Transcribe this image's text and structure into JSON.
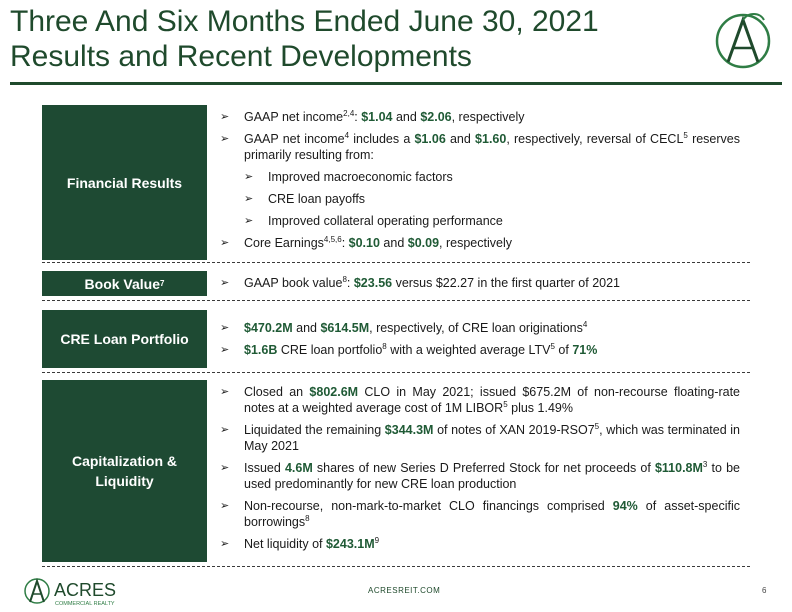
{
  "header": {
    "title_line1": "Three And Six Months Ended June 30, 2021",
    "title_line2": "Results and Recent Developments"
  },
  "sections": {
    "financial": {
      "label": "Financial Results",
      "b1": {
        "pre": "GAAP net income",
        "sup": "2,4",
        "mid": ": ",
        "v1": "$1.04",
        "and": " and ",
        "v2": "$2.06",
        "post": ", respectively"
      },
      "b2": {
        "pre": "GAAP net income",
        "sup": "4",
        "mid": " includes a ",
        "v1": "$1.06",
        "and": " and ",
        "v2": "$1.60",
        "post": ", respectively, reversal of CECL",
        "sup2": "5",
        "post2": " reserves primarily resulting from:"
      },
      "sub1": "Improved macroeconomic factors",
      "sub2": "CRE loan payoffs",
      "sub3": "Improved collateral operating performance",
      "b3": {
        "pre": "Core Earnings",
        "sup": "4,5,6",
        "mid": ": ",
        "v1": "$0.10",
        "and": " and ",
        "v2": "$0.09",
        "post": ", respectively"
      }
    },
    "book": {
      "label": "Book Value",
      "label_sup": "7",
      "b1": {
        "pre": "GAAP book value",
        "sup": "8",
        "mid": ": ",
        "v1": "$23.56",
        "post": " versus $22.27 in the first quarter of 2021"
      }
    },
    "cre": {
      "label": "CRE Loan Portfolio",
      "b1": {
        "v1": "$470.2M",
        "and": " and ",
        "v2": "$614.5M",
        "post": ", respectively, of CRE loan originations",
        "sup": "4"
      },
      "b2": {
        "v1": "$1.6B",
        "mid": " CRE loan portfolio",
        "sup": "8",
        "post": " with a weighted average LTV",
        "sup2": "5",
        "post2": " of ",
        "v2": "71%"
      }
    },
    "cap": {
      "label_line1": "Capitalization &",
      "label_line2": "Liquidity",
      "b1": {
        "pre": "Closed an ",
        "v1": "$802.6M",
        "post": " CLO in May 2021; issued $675.2M of non-recourse floating-rate notes at a weighted average cost of 1M LIBOR",
        "sup": "5",
        "post2": " plus 1.49%"
      },
      "b2": {
        "pre": "Liquidated the remaining ",
        "v1": "$344.3M",
        "post": " of notes of XAN 2019-RSO7",
        "sup": "5",
        "post2": ", which was terminated in May 2021"
      },
      "b3": {
        "pre": "Issued ",
        "v1": "4.6M",
        "mid": " shares of new Series D Preferred Stock for net proceeds of ",
        "v2": "$110.8M",
        "sup": "3",
        "post": " to be used predominantly for new CRE loan production"
      },
      "b4": {
        "pre": "Non-recourse, non-mark-to-market CLO financings comprised ",
        "v1": "94%",
        "post": " of asset-specific borrowings",
        "sup": "8"
      },
      "b5": {
        "pre": "Net liquidity of ",
        "v1": "$243.1M",
        "sup": "9"
      }
    }
  },
  "footer": {
    "logo_text": "ACRES",
    "logo_sub": "COMMERCIAL REALTY",
    "url": "ACRESREIT.COM",
    "page": "6"
  },
  "colors": {
    "brand_green": "#1e4a33",
    "highlight_green": "#1f5a35"
  },
  "icons": {
    "bullet": "arrow-bullet-icon",
    "logo": "acres-logo-icon"
  }
}
